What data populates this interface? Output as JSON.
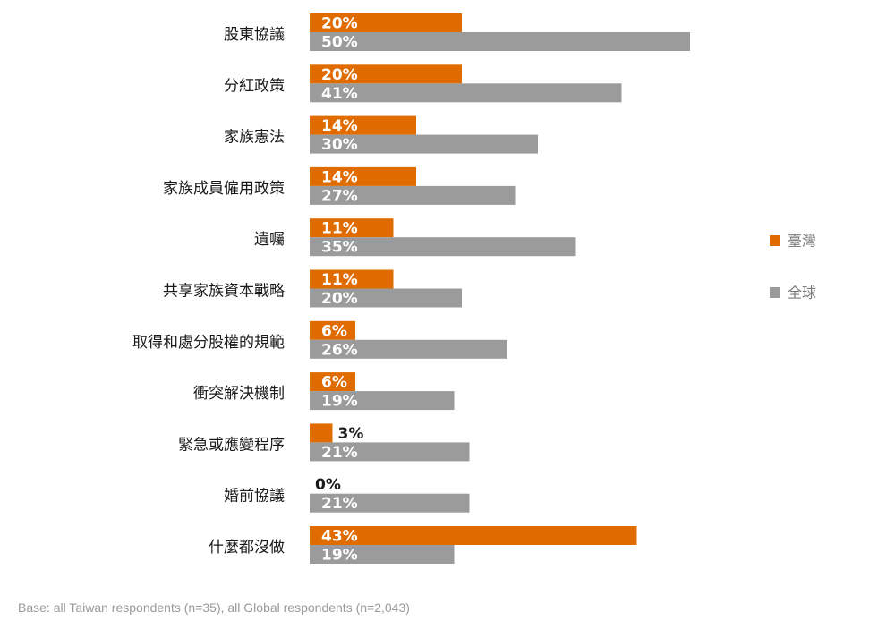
{
  "chart_data": {
    "type": "bar",
    "orientation": "horizontal",
    "categories": [
      "股東協議",
      "分紅政策",
      "家族憲法",
      "家族成員僱用政策",
      "遺囑",
      "共享家族資本戰略",
      "取得和處分股權的規範",
      "衝突解決機制",
      "緊急或應變程序",
      "婚前協議",
      "什麼都沒做"
    ],
    "series": [
      {
        "name": "臺灣",
        "color": "#e06b00",
        "values": [
          20,
          20,
          14,
          14,
          11,
          11,
          6,
          6,
          3,
          0,
          43
        ],
        "labels": [
          "20%",
          "20%",
          "14%",
          "14%",
          "11%",
          "11%",
          "6%",
          "6%",
          "3%",
          "0%",
          "43%"
        ]
      },
      {
        "name": "全球",
        "color": "#9b9b9b",
        "values": [
          50,
          41,
          30,
          27,
          35,
          20,
          26,
          19,
          21,
          21,
          19
        ],
        "labels": [
          "50%",
          "41%",
          "30%",
          "27%",
          "35%",
          "20%",
          "26%",
          "19%",
          "21%",
          "21%",
          "19%"
        ]
      }
    ],
    "xlim": [
      0,
      60
    ],
    "grid": false,
    "legend_position": "right"
  },
  "footnote": "Base: all Taiwan respondents (n=35), all Global respondents (n=2,043)"
}
